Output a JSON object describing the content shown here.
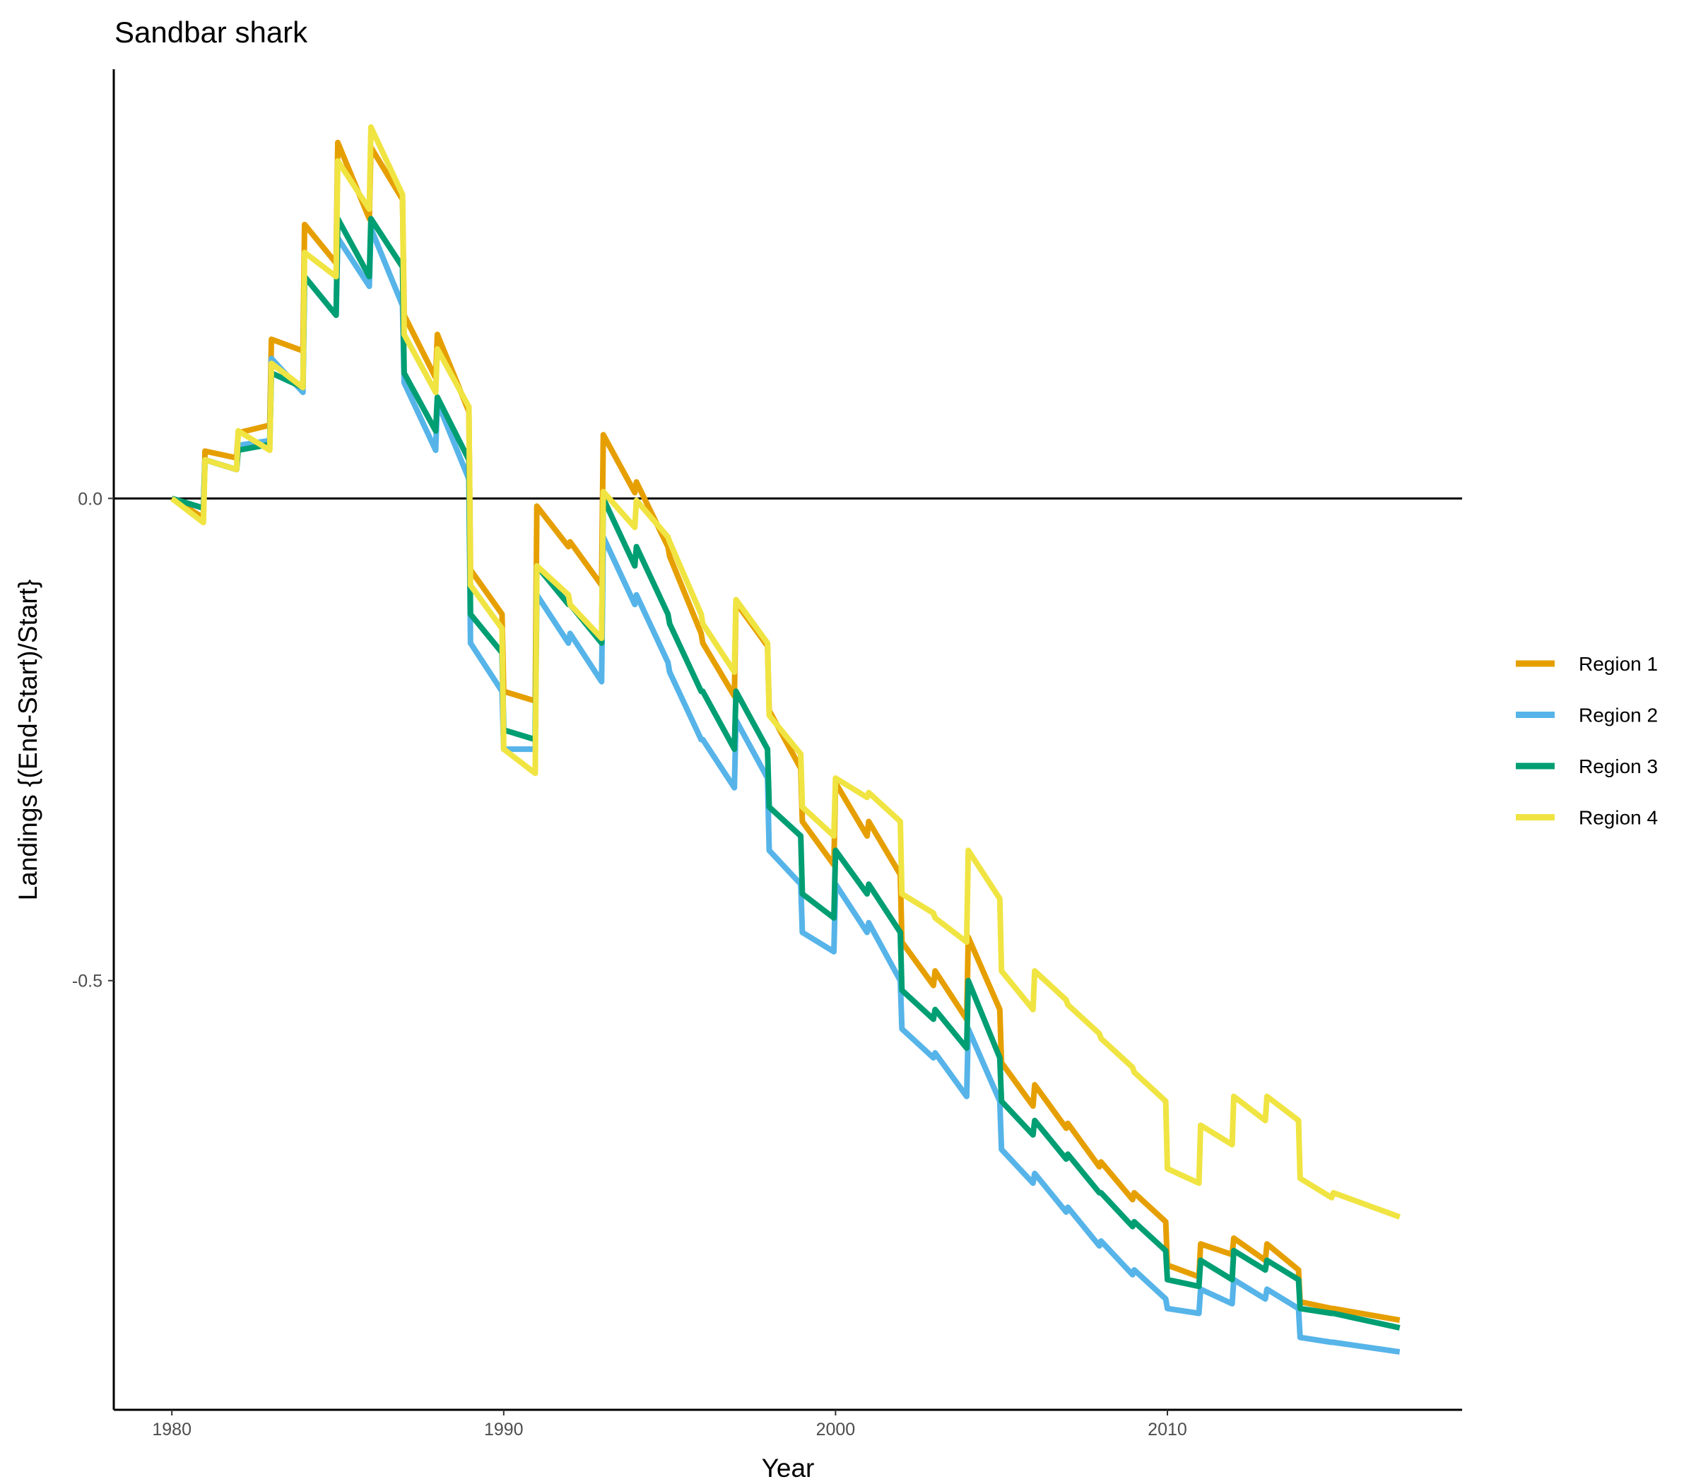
{
  "chart_data": {
    "type": "line",
    "title": "Sandbar shark",
    "x_label": "Year",
    "y_label": "Landings {(End-Start)/Start}",
    "x": [
      1980,
      1980.95,
      1981,
      1981.95,
      1982,
      1982.95,
      1983,
      1983.95,
      1984,
      1984.95,
      1985,
      1985.95,
      1986,
      1986.95,
      1987,
      1987.95,
      1988,
      1988.95,
      1989,
      1989.95,
      1990,
      1990.95,
      1991,
      1991.95,
      1992,
      1992.95,
      1993,
      1993.95,
      1994,
      1994.95,
      1995,
      1995.95,
      1996,
      1996.95,
      1997,
      1997.95,
      1998,
      1998.95,
      1999,
      1999.95,
      2000,
      2000.95,
      2001,
      2001.95,
      2002,
      2002.95,
      2003,
      2003.95,
      2004,
      2004.95,
      2005,
      2005.95,
      2006,
      2006.95,
      2007,
      2007.95,
      2008,
      2008.95,
      2009,
      2009.95,
      2010,
      2010.95,
      2011,
      2011.95,
      2012,
      2012.95,
      2013,
      2013.95,
      2014,
      2014.95,
      2015,
      2017
    ],
    "series": [
      {
        "name": "Region 1",
        "color": "#E69F00",
        "values": [
          0,
          -0.02,
          0.049,
          0.042,
          0.068,
          0.076,
          0.165,
          0.153,
          0.284,
          0.244,
          0.369,
          0.29,
          0.364,
          0.31,
          0.19,
          0.125,
          0.17,
          0.09,
          -0.074,
          -0.12,
          -0.2,
          -0.21,
          -0.008,
          -0.05,
          -0.045,
          -0.09,
          0.066,
          0.006,
          0.017,
          -0.05,
          -0.06,
          -0.14,
          -0.15,
          -0.205,
          -0.108,
          -0.153,
          -0.22,
          -0.28,
          -0.335,
          -0.38,
          -0.295,
          -0.35,
          -0.335,
          -0.39,
          -0.46,
          -0.505,
          -0.49,
          -0.54,
          -0.455,
          -0.53,
          -0.585,
          -0.63,
          -0.608,
          -0.653,
          -0.648,
          -0.693,
          -0.688,
          -0.727,
          -0.72,
          -0.75,
          -0.795,
          -0.807,
          -0.773,
          -0.784,
          -0.767,
          -0.79,
          -0.773,
          -0.8,
          -0.833,
          -0.84,
          -0.84,
          -0.852
        ]
      },
      {
        "name": "Region 2",
        "color": "#56B4E9",
        "values": [
          0,
          -0.01,
          0.04,
          0.03,
          0.055,
          0.06,
          0.145,
          0.11,
          0.23,
          0.19,
          0.27,
          0.22,
          0.28,
          0.2,
          0.12,
          0.05,
          0.1,
          0.02,
          -0.15,
          -0.2,
          -0.26,
          -0.26,
          -0.1,
          -0.15,
          -0.14,
          -0.19,
          -0.04,
          -0.11,
          -0.1,
          -0.17,
          -0.18,
          -0.25,
          -0.25,
          -0.3,
          -0.23,
          -0.29,
          -0.365,
          -0.4,
          -0.45,
          -0.47,
          -0.4,
          -0.45,
          -0.44,
          -0.5,
          -0.55,
          -0.58,
          -0.575,
          -0.62,
          -0.55,
          -0.625,
          -0.675,
          -0.71,
          -0.7,
          -0.74,
          -0.735,
          -0.775,
          -0.77,
          -0.805,
          -0.8,
          -0.83,
          -0.84,
          -0.845,
          -0.82,
          -0.835,
          -0.81,
          -0.83,
          -0.82,
          -0.84,
          -0.87,
          -0.875,
          -0.875,
          -0.885
        ]
      },
      {
        "name": "Region 3",
        "color": "#009E73",
        "values": [
          0,
          -0.01,
          0.04,
          0.03,
          0.05,
          0.056,
          0.13,
          0.115,
          0.23,
          0.19,
          0.29,
          0.23,
          0.29,
          0.24,
          0.13,
          0.07,
          0.105,
          0.04,
          -0.12,
          -0.16,
          -0.24,
          -0.25,
          -0.07,
          -0.11,
          -0.11,
          -0.15,
          0,
          -0.07,
          -0.05,
          -0.12,
          -0.13,
          -0.2,
          -0.2,
          -0.26,
          -0.2,
          -0.26,
          -0.32,
          -0.35,
          -0.41,
          -0.435,
          -0.365,
          -0.41,
          -0.4,
          -0.45,
          -0.51,
          -0.54,
          -0.53,
          -0.57,
          -0.5,
          -0.58,
          -0.625,
          -0.66,
          -0.645,
          -0.685,
          -0.68,
          -0.72,
          -0.72,
          -0.755,
          -0.75,
          -0.78,
          -0.81,
          -0.817,
          -0.79,
          -0.81,
          -0.78,
          -0.8,
          -0.79,
          -0.81,
          -0.84,
          -0.845,
          -0.845,
          -0.86
        ]
      },
      {
        "name": "Region 4",
        "color": "#F0E442",
        "values": [
          0,
          -0.025,
          0.04,
          0.03,
          0.07,
          0.05,
          0.14,
          0.115,
          0.255,
          0.23,
          0.35,
          0.3,
          0.385,
          0.315,
          0.17,
          0.11,
          0.155,
          0.095,
          -0.09,
          -0.135,
          -0.26,
          -0.285,
          -0.07,
          -0.1,
          -0.11,
          -0.145,
          0.007,
          -0.03,
          -0.002,
          -0.04,
          -0.045,
          -0.12,
          -0.13,
          -0.18,
          -0.105,
          -0.15,
          -0.225,
          -0.265,
          -0.32,
          -0.35,
          -0.29,
          -0.31,
          -0.305,
          -0.335,
          -0.41,
          -0.43,
          -0.435,
          -0.46,
          -0.365,
          -0.415,
          -0.49,
          -0.53,
          -0.49,
          -0.52,
          -0.525,
          -0.555,
          -0.56,
          -0.59,
          -0.595,
          -0.625,
          -0.695,
          -0.71,
          -0.65,
          -0.67,
          -0.62,
          -0.645,
          -0.62,
          -0.645,
          -0.705,
          -0.725,
          -0.72,
          -0.745
        ]
      }
    ],
    "xlim": [
      1978.25,
      2018.88
    ],
    "ylim": [
      -0.945,
      0.445
    ],
    "xticks": [
      1980,
      1990,
      2000,
      2010
    ],
    "yticks": [
      -0.5,
      {
        "value": 0,
        "label": "0.0"
      }
    ],
    "hline": 0,
    "grid": false,
    "legend": "right"
  }
}
